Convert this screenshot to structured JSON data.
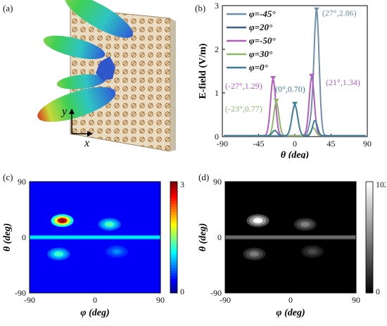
{
  "panels": {
    "a": {
      "label": "(a)",
      "axis_y": "y",
      "axis_x": "x"
    },
    "b": {
      "label": "(b)",
      "chart_data": {
        "type": "line",
        "xlabel": "θ (deg)",
        "ylabel": "E-field (V/m)",
        "xlim": [
          -90,
          90
        ],
        "ylim": [
          0,
          3
        ],
        "xticks": [
          "-90",
          "-45",
          "0",
          "45",
          "90"
        ],
        "yticks": [
          "0",
          "1",
          "2",
          "3"
        ],
        "legend_position": "top-left",
        "series": [
          {
            "name": "φ=-45°",
            "color": "#6f8fb0",
            "peaks": [
              {
                "x": 27,
                "y": 2.86,
                "w": 3.2
              },
              {
                "x": 20,
                "y": 0.25,
                "w": 3
              }
            ],
            "annotation": "(27°,2.86)",
            "peak_x": 27,
            "peak_y": 2.86
          },
          {
            "name": "φ=20°",
            "color": "#3d5f85",
            "peaks": [],
            "annotation": "",
            "peak_x": null,
            "peak_y": null
          },
          {
            "name": "φ=-50°",
            "color": "#b45cc0",
            "peaks": [
              {
                "x": -27,
                "y": 1.29,
                "w": 3.2
              },
              {
                "x": 21,
                "y": 1.34,
                "w": 3.2
              }
            ],
            "annotation": "(-27°,1.29)",
            "peak_x": -27,
            "peak_y": 1.29
          },
          {
            "name": "φ=30°",
            "color": "#8fb76a",
            "peaks": [
              {
                "x": -23,
                "y": 0.77,
                "w": 3.2
              },
              {
                "x": 23,
                "y": 0.18,
                "w": 3
              }
            ],
            "annotation": "(-23°,0.77)",
            "peak_x": -23,
            "peak_y": 0.77
          },
          {
            "name": "φ=0°",
            "color": "#3f7a9a",
            "peaks": [
              {
                "x": 0,
                "y": 0.7,
                "w": 3.6
              },
              {
                "x": -25,
                "y": 0.12,
                "w": 3
              },
              {
                "x": 25,
                "y": 0.35,
                "w": 3
              }
            ],
            "annotation": "(0°,0.70)",
            "peak_x": 0,
            "peak_y": 0.7
          }
        ],
        "extra_annotations": [
          {
            "text": "(21°,1.34)",
            "color": "#b45cc0",
            "x": 21,
            "y": 1.34
          }
        ]
      }
    },
    "c": {
      "label": "(c)",
      "chart_data": {
        "type": "heatmap",
        "colormap": "jet",
        "xlabel": "φ (deg)",
        "ylabel": "θ (deg)",
        "xlim": [
          -90,
          90
        ],
        "ylim": [
          -90,
          90
        ],
        "xticks": [
          "-90",
          "0",
          "90"
        ],
        "yticks": [
          "90",
          "0",
          "-90"
        ],
        "colorbar": {
          "min": "0",
          "max": "3"
        },
        "hotspots": [
          {
            "phi": -45,
            "theta": 27,
            "value": 2.86
          },
          {
            "phi": 20,
            "theta": 21,
            "value": 1.34
          },
          {
            "phi": -50,
            "theta": -27,
            "value": 1.29
          },
          {
            "phi": 30,
            "theta": -23,
            "value": 0.77
          }
        ]
      }
    },
    "d": {
      "label": "(d)",
      "chart_data": {
        "type": "heatmap",
        "colormap": "gray",
        "xlabel": "φ (deg)",
        "ylabel": "θ (deg)",
        "xlim": [
          -90,
          90
        ],
        "ylim": [
          -90,
          90
        ],
        "xticks": [
          "-90",
          "0",
          "90"
        ],
        "yticks": [
          "90",
          "0",
          "-90"
        ],
        "colorbar": {
          "min": "0",
          "max": "102"
        }
      }
    }
  }
}
